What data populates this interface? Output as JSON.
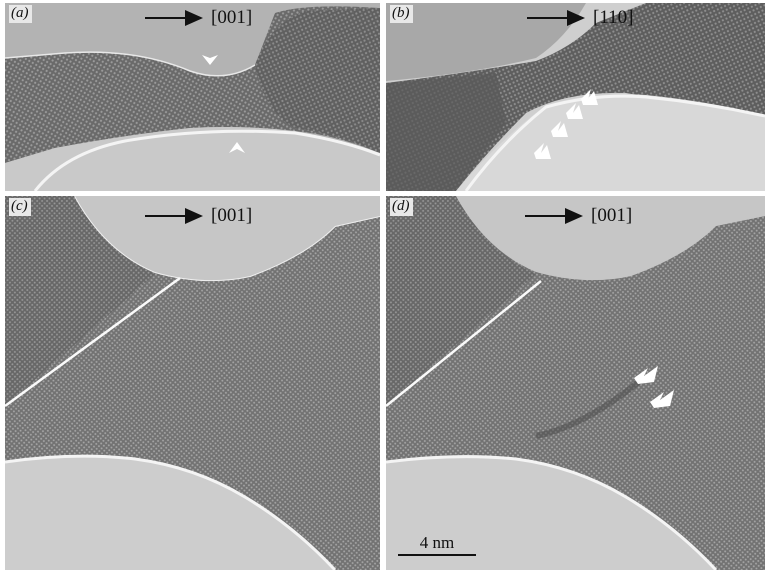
{
  "panels": {
    "a": {
      "label": "(a)",
      "direction": "[001]"
    },
    "b": {
      "label": "(b)",
      "direction": "[110]"
    },
    "c": {
      "label": "(c)",
      "direction": "[001]"
    },
    "d": {
      "label": "(d)",
      "direction": "[001]"
    }
  },
  "scale_bar": {
    "label": "4 nm"
  }
}
